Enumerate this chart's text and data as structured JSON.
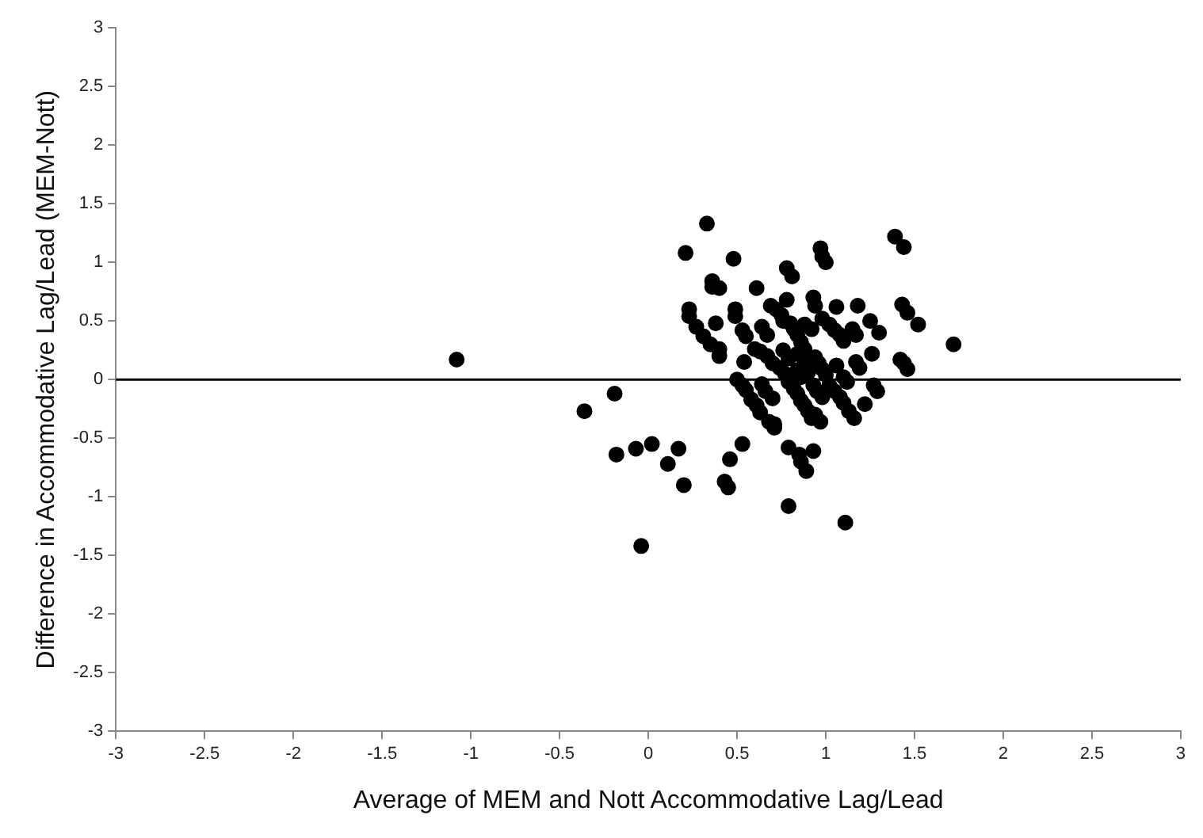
{
  "chart_data": {
    "type": "scatter",
    "xlabel": "Average of MEM and Nott Accommodative Lag/Lead",
    "ylabel": "Difference in Accommodative Lag/Lead (MEM-Nott)",
    "xlim": [
      -3,
      3
    ],
    "ylim": [
      -3,
      3
    ],
    "xticks": [
      -3,
      -2.5,
      -2,
      -1.5,
      -1,
      -0.5,
      0,
      0.5,
      1,
      1.5,
      2,
      2.5,
      3
    ],
    "yticks": [
      -3,
      -2.5,
      -2,
      -1.5,
      -1,
      -0.5,
      0,
      0.5,
      1,
      1.5,
      2,
      2.5,
      3
    ],
    "grid": false,
    "legend": false,
    "marker": "circle",
    "ref_lines": [
      {
        "axis": "y",
        "value": 0,
        "color": "#000000"
      }
    ],
    "series": [
      {
        "color": "#000000",
        "x": [
          -1.08,
          -0.36,
          -0.19,
          -0.18,
          -0.07,
          0.02,
          0.11,
          0.17,
          0.2,
          -0.04,
          0.43,
          0.45,
          0.46,
          0.53,
          0.33,
          0.21,
          0.48,
          0.36,
          0.36,
          0.4,
          0.23,
          0.23,
          0.27,
          0.31,
          0.35,
          0.38,
          0.4,
          0.4,
          0.49,
          0.49,
          0.61,
          0.53,
          0.55,
          0.54,
          0.5,
          0.53,
          0.55,
          0.58,
          0.61,
          0.63,
          0.6,
          0.63,
          0.64,
          0.67,
          0.67,
          0.7,
          0.64,
          0.66,
          0.7,
          0.68,
          0.71,
          0.71,
          0.69,
          0.72,
          0.75,
          0.78,
          0.78,
          0.81,
          0.76,
          0.8,
          0.82,
          0.84,
          0.76,
          0.79,
          0.74,
          0.77,
          0.79,
          0.82,
          0.84,
          0.86,
          0.88,
          0.9,
          0.92,
          0.94,
          0.97,
          0.79,
          0.85,
          0.86,
          0.89,
          0.93,
          0.79,
          1.11,
          0.86,
          0.88,
          0.88,
          0.92,
          0.93,
          0.94,
          0.84,
          0.86,
          0.9,
          0.94,
          0.96,
          0.98,
          1.0,
          0.93,
          0.95,
          0.98,
          1.02,
          1.05,
          1.08,
          1.1,
          1.13,
          1.16,
          0.97,
          0.98,
          1.0,
          0.98,
          1.02,
          1.05,
          1.08,
          1.1,
          1.06,
          1.06,
          1.1,
          1.12,
          1.15,
          1.17,
          1.18,
          1.17,
          1.19,
          1.22,
          1.25,
          1.26,
          1.27,
          1.29,
          1.3,
          1.39,
          1.44,
          1.43,
          1.46,
          1.52,
          1.42,
          1.44,
          1.46,
          1.72,
          0.88,
          0.84
        ],
        "values": [
          0.17,
          -0.27,
          -0.12,
          -0.64,
          -0.59,
          -0.55,
          -0.72,
          -0.59,
          -0.9,
          -1.42,
          -0.87,
          -0.92,
          -0.68,
          -0.55,
          1.33,
          1.08,
          1.03,
          0.84,
          0.79,
          0.78,
          0.6,
          0.54,
          0.45,
          0.37,
          0.3,
          0.48,
          0.26,
          0.2,
          0.6,
          0.54,
          0.78,
          0.42,
          0.37,
          0.15,
          0.0,
          -0.05,
          -0.09,
          -0.17,
          -0.22,
          -0.28,
          0.26,
          0.24,
          0.45,
          0.38,
          0.2,
          0.14,
          -0.04,
          -0.1,
          -0.16,
          -0.36,
          -0.38,
          -0.41,
          0.63,
          0.6,
          0.55,
          0.68,
          0.95,
          0.88,
          0.5,
          0.48,
          0.43,
          0.38,
          0.25,
          0.18,
          0.1,
          0.05,
          -0.02,
          -0.08,
          -0.12,
          -0.18,
          -0.22,
          -0.27,
          -0.33,
          -0.3,
          -0.36,
          -0.58,
          -0.64,
          -0.7,
          -0.78,
          -0.61,
          -1.08,
          -1.22,
          0.32,
          0.26,
          0.47,
          0.43,
          0.7,
          0.63,
          0.08,
          0.02,
          0.06,
          0.19,
          0.14,
          0.09,
          0.04,
          -0.05,
          -0.1,
          -0.15,
          -0.05,
          -0.1,
          -0.15,
          -0.2,
          -0.27,
          -0.33,
          1.12,
          1.05,
          1.0,
          0.52,
          0.47,
          0.42,
          0.38,
          0.33,
          0.62,
          0.12,
          0.02,
          -0.02,
          0.43,
          0.38,
          0.63,
          0.15,
          0.1,
          -0.21,
          0.5,
          0.22,
          -0.05,
          -0.1,
          0.4,
          1.22,
          1.13,
          0.64,
          0.57,
          0.47,
          0.17,
          0.14,
          0.09,
          0.3,
          0.15,
          0.22
        ]
      }
    ]
  }
}
